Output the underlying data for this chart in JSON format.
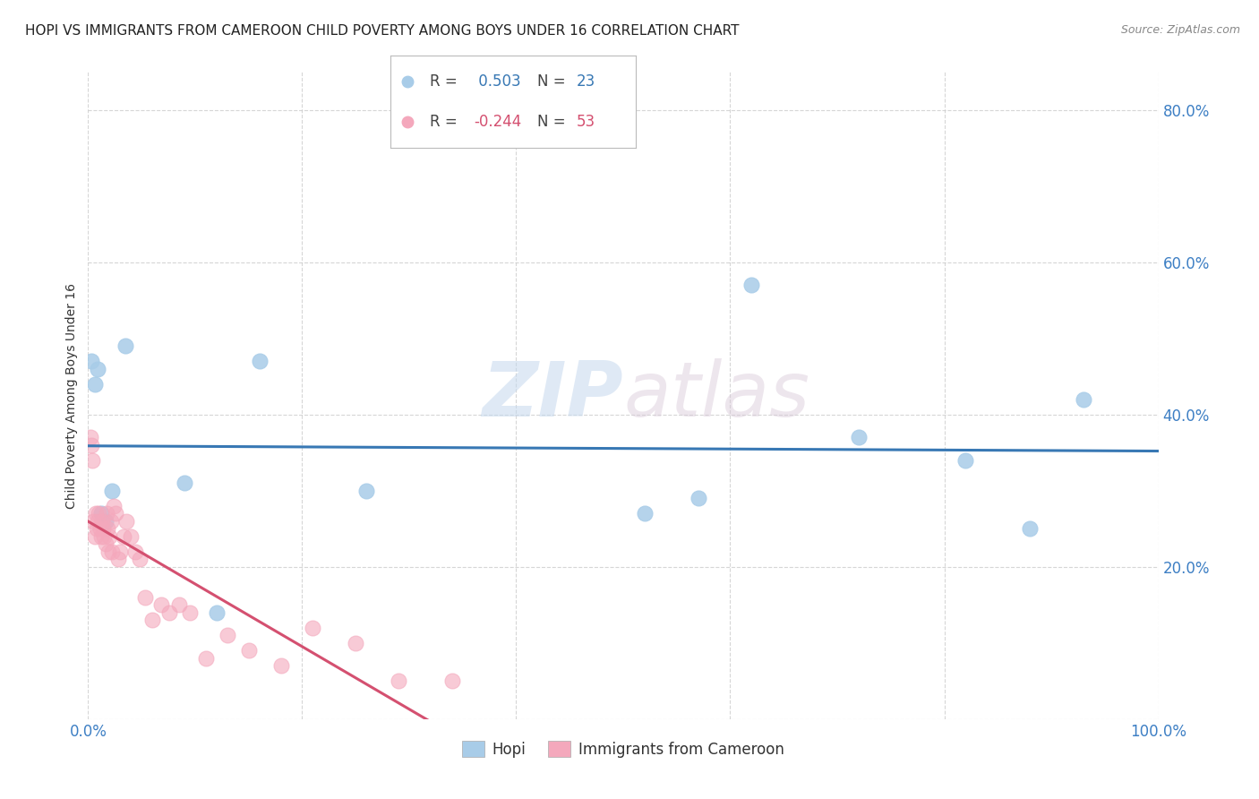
{
  "title": "HOPI VS IMMIGRANTS FROM CAMEROON CHILD POVERTY AMONG BOYS UNDER 16 CORRELATION CHART",
  "source": "Source: ZipAtlas.com",
  "ylabel": "Child Poverty Among Boys Under 16",
  "xlim": [
    0.0,
    1.0
  ],
  "ylim": [
    0.0,
    0.85
  ],
  "xticks": [
    0.0,
    0.2,
    0.4,
    0.6,
    0.8,
    1.0
  ],
  "yticks": [
    0.0,
    0.2,
    0.4,
    0.6,
    0.8
  ],
  "xticklabels": [
    "0.0%",
    "",
    "",
    "",
    "",
    "100.0%"
  ],
  "yticklabels": [
    "",
    "20.0%",
    "40.0%",
    "60.0%",
    "80.0%"
  ],
  "hopi_R": 0.503,
  "hopi_N": 23,
  "cameroon_R": -0.244,
  "cameroon_N": 53,
  "hopi_color": "#a8cce8",
  "hopi_line_color": "#3878b4",
  "cameroon_color": "#f4a8bc",
  "cameroon_line_color": "#d45070",
  "background_color": "#ffffff",
  "watermark_part1": "ZIP",
  "watermark_part2": "atlas",
  "hopi_x": [
    0.003,
    0.006,
    0.009,
    0.012,
    0.016,
    0.022,
    0.035,
    0.09,
    0.12,
    0.16,
    0.26,
    0.52,
    0.57,
    0.62,
    0.72,
    0.82,
    0.88,
    0.93
  ],
  "hopi_y": [
    0.47,
    0.44,
    0.46,
    0.27,
    0.26,
    0.3,
    0.49,
    0.31,
    0.14,
    0.47,
    0.3,
    0.27,
    0.29,
    0.57,
    0.37,
    0.34,
    0.25,
    0.42
  ],
  "cameroon_x": [
    0.002,
    0.003,
    0.004,
    0.005,
    0.006,
    0.007,
    0.008,
    0.009,
    0.01,
    0.011,
    0.012,
    0.013,
    0.014,
    0.015,
    0.016,
    0.017,
    0.018,
    0.019,
    0.02,
    0.021,
    0.022,
    0.024,
    0.026,
    0.028,
    0.03,
    0.033,
    0.036,
    0.04,
    0.044,
    0.048,
    0.053,
    0.06,
    0.068,
    0.076,
    0.085,
    0.095,
    0.11,
    0.13,
    0.15,
    0.18,
    0.21,
    0.25,
    0.29,
    0.34
  ],
  "cameroon_y": [
    0.37,
    0.36,
    0.34,
    0.26,
    0.24,
    0.27,
    0.25,
    0.26,
    0.27,
    0.25,
    0.24,
    0.26,
    0.25,
    0.24,
    0.23,
    0.27,
    0.25,
    0.22,
    0.24,
    0.26,
    0.22,
    0.28,
    0.27,
    0.21,
    0.22,
    0.24,
    0.26,
    0.24,
    0.22,
    0.21,
    0.16,
    0.13,
    0.15,
    0.14,
    0.15,
    0.14,
    0.08,
    0.11,
    0.09,
    0.07,
    0.12,
    0.1,
    0.05,
    0.05
  ],
  "title_fontsize": 11,
  "axis_label_fontsize": 10,
  "tick_fontsize": 12,
  "source_fontsize": 9
}
